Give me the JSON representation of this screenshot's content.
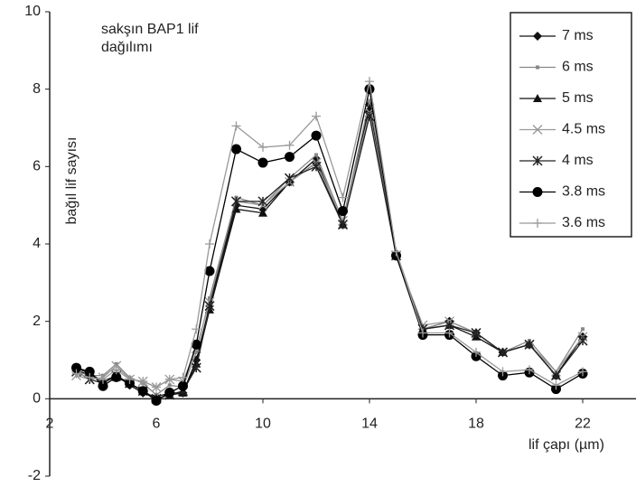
{
  "chart_data": {
    "type": "line",
    "annotation": [
      "sakşın BAP1 lif",
      "dağılımı"
    ],
    "ylabel": "bağıl lif sayısı",
    "xlabel": "lif çapı (µm)",
    "x": [
      3,
      3.5,
      4,
      4.5,
      5,
      5.5,
      6,
      6.5,
      7,
      7.5,
      8,
      9,
      10,
      11,
      12,
      13,
      14,
      15,
      16,
      17,
      18,
      19,
      20,
      21,
      22
    ],
    "xlim": [
      2,
      24
    ],
    "xticks": [
      2,
      6,
      10,
      14,
      18,
      22
    ],
    "ylim": [
      -2,
      10
    ],
    "yticks": [
      -2,
      0,
      2,
      4,
      6,
      8,
      10
    ],
    "series": [
      {
        "name": "7 ms",
        "color": "#111111",
        "marker": "diamond",
        "values": [
          0.75,
          0.6,
          0.45,
          0.6,
          0.35,
          0.15,
          0.05,
          0.15,
          0.15,
          1.0,
          2.4,
          5.0,
          4.9,
          5.6,
          6.2,
          4.5,
          7.6,
          3.7,
          1.8,
          2.0,
          1.7,
          1.2,
          1.4,
          0.6,
          1.6
        ]
      },
      {
        "name": "6 ms",
        "color": "#888888",
        "marker": "square",
        "values": [
          0.7,
          0.6,
          0.6,
          0.9,
          0.55,
          0.4,
          0.1,
          0.35,
          0.3,
          1.2,
          2.6,
          5.2,
          5.0,
          5.7,
          6.3,
          4.6,
          7.7,
          3.8,
          1.8,
          2.0,
          1.7,
          1.2,
          1.5,
          0.7,
          1.8
        ]
      },
      {
        "name": "5 ms",
        "color": "#111111",
        "marker": "triangle",
        "values": [
          0.8,
          0.65,
          0.45,
          0.55,
          0.4,
          0.2,
          0.0,
          0.1,
          0.15,
          0.9,
          2.3,
          4.9,
          4.8,
          5.6,
          6.1,
          4.5,
          7.5,
          3.7,
          1.8,
          1.9,
          1.6,
          1.2,
          1.4,
          0.6,
          1.6
        ]
      },
      {
        "name": "4.5 ms",
        "color": "#999999",
        "marker": "cross",
        "values": [
          0.6,
          0.5,
          0.55,
          0.85,
          0.5,
          0.45,
          0.3,
          0.5,
          0.45,
          1.3,
          2.5,
          5.1,
          5.0,
          5.6,
          6.1,
          4.6,
          7.4,
          3.7,
          1.9,
          2.0,
          1.7,
          1.2,
          1.4,
          0.7,
          1.6
        ]
      },
      {
        "name": "4 ms",
        "color": "#222222",
        "marker": "star",
        "values": [
          0.7,
          0.5,
          0.4,
          0.6,
          0.4,
          0.2,
          0.0,
          0.1,
          0.2,
          0.8,
          2.4,
          5.1,
          5.1,
          5.7,
          6.0,
          4.5,
          7.3,
          3.7,
          1.8,
          1.9,
          1.7,
          1.2,
          1.4,
          0.6,
          1.5
        ]
      },
      {
        "name": "3.8 ms",
        "color": "#000000",
        "marker": "circle",
        "values": [
          0.8,
          0.7,
          0.33,
          0.56,
          0.4,
          0.2,
          -0.05,
          0.16,
          0.33,
          1.4,
          3.3,
          6.45,
          6.1,
          6.25,
          6.8,
          4.85,
          8.0,
          3.7,
          1.65,
          1.65,
          1.1,
          0.6,
          0.68,
          0.25,
          0.65
        ]
      },
      {
        "name": "3.6 ms",
        "color": "#999999",
        "marker": "plus",
        "values": [
          0.65,
          0.55,
          0.5,
          0.75,
          0.5,
          0.45,
          0.3,
          0.5,
          0.55,
          1.8,
          4.0,
          7.05,
          6.5,
          6.55,
          7.3,
          5.2,
          8.2,
          3.8,
          1.7,
          1.7,
          1.2,
          0.7,
          0.75,
          0.35,
          0.7
        ]
      }
    ]
  }
}
